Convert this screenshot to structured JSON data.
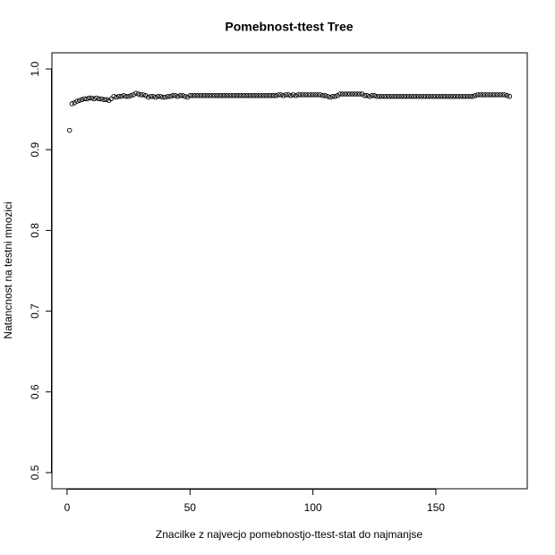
{
  "chart_data": {
    "type": "scatter",
    "title": "Pomebnost-ttest Tree",
    "x_label": "Znacilke z najvecjo pomebnostjo-ttest-stat do najmanjse",
    "y_label": "Natancnost na testni mnozici",
    "x": [
      1,
      2,
      3,
      4,
      5,
      6,
      7,
      8,
      9,
      10,
      11,
      12,
      13,
      14,
      15,
      16,
      17,
      18,
      19,
      20,
      21,
      22,
      23,
      24,
      25,
      26,
      27,
      28,
      29,
      30,
      31,
      32,
      33,
      34,
      35,
      36,
      37,
      38,
      39,
      40,
      41,
      42,
      43,
      44,
      45,
      46,
      47,
      48,
      49,
      50,
      51,
      52,
      53,
      54,
      55,
      56,
      57,
      58,
      59,
      60,
      61,
      62,
      63,
      64,
      65,
      66,
      67,
      68,
      69,
      70,
      71,
      72,
      73,
      74,
      75,
      76,
      77,
      78,
      79,
      80,
      81,
      82,
      83,
      84,
      85,
      86,
      87,
      88,
      89,
      90,
      91,
      92,
      93,
      94,
      95,
      96,
      97,
      98,
      99,
      100,
      101,
      102,
      103,
      104,
      105,
      106,
      107,
      108,
      109,
      110,
      111,
      112,
      113,
      114,
      115,
      116,
      117,
      118,
      119,
      120,
      121,
      122,
      123,
      124,
      125,
      126,
      127,
      128,
      129,
      130,
      131,
      132,
      133,
      134,
      135,
      136,
      137,
      138,
      139,
      140,
      141,
      142,
      143,
      144,
      145,
      146,
      147,
      148,
      149,
      150,
      151,
      152,
      153,
      154,
      155,
      156,
      157,
      158,
      159,
      160,
      161,
      162,
      163,
      164,
      165,
      166,
      167,
      168,
      169,
      170,
      171,
      172,
      173,
      174,
      175,
      176,
      177,
      178,
      179,
      180
    ],
    "values": [
      0.924,
      0.957,
      0.958,
      0.96,
      0.961,
      0.962,
      0.963,
      0.963,
      0.964,
      0.964,
      0.963,
      0.964,
      0.963,
      0.963,
      0.962,
      0.962,
      0.961,
      0.963,
      0.966,
      0.965,
      0.966,
      0.966,
      0.967,
      0.966,
      0.966,
      0.967,
      0.968,
      0.97,
      0.969,
      0.968,
      0.968,
      0.967,
      0.965,
      0.966,
      0.966,
      0.965,
      0.966,
      0.966,
      0.965,
      0.965,
      0.966,
      0.966,
      0.967,
      0.967,
      0.966,
      0.967,
      0.967,
      0.966,
      0.965,
      0.967,
      0.967,
      0.967,
      0.967,
      0.967,
      0.967,
      0.967,
      0.967,
      0.967,
      0.967,
      0.967,
      0.967,
      0.967,
      0.967,
      0.967,
      0.967,
      0.967,
      0.967,
      0.967,
      0.967,
      0.967,
      0.967,
      0.967,
      0.967,
      0.967,
      0.967,
      0.967,
      0.967,
      0.967,
      0.967,
      0.967,
      0.967,
      0.967,
      0.967,
      0.967,
      0.967,
      0.968,
      0.968,
      0.967,
      0.968,
      0.968,
      0.967,
      0.968,
      0.967,
      0.968,
      0.968,
      0.968,
      0.968,
      0.968,
      0.968,
      0.968,
      0.968,
      0.968,
      0.968,
      0.967,
      0.967,
      0.966,
      0.965,
      0.966,
      0.966,
      0.967,
      0.969,
      0.969,
      0.969,
      0.969,
      0.969,
      0.969,
      0.969,
      0.969,
      0.969,
      0.969,
      0.967,
      0.967,
      0.966,
      0.967,
      0.967,
      0.966,
      0.966,
      0.966,
      0.966,
      0.966,
      0.966,
      0.966,
      0.966,
      0.966,
      0.966,
      0.966,
      0.966,
      0.966,
      0.966,
      0.966,
      0.966,
      0.966,
      0.966,
      0.966,
      0.966,
      0.966,
      0.966,
      0.966,
      0.966,
      0.966,
      0.966,
      0.966,
      0.966,
      0.966,
      0.966,
      0.966,
      0.966,
      0.966,
      0.966,
      0.966,
      0.966,
      0.966,
      0.966,
      0.966,
      0.966,
      0.967,
      0.968,
      0.968,
      0.968,
      0.968,
      0.968,
      0.968,
      0.968,
      0.968,
      0.968,
      0.968,
      0.968,
      0.968,
      0.967,
      0.966
    ],
    "color": "#000000",
    "xlim": [
      -6.16,
      187.16
    ],
    "xticks": [
      0,
      50,
      100,
      150
    ],
    "ylim": [
      0.48,
      1.02
    ],
    "yticks": [
      0.5,
      0.6,
      0.7,
      0.8,
      0.9,
      {
        "value": 1,
        "label": "1.0"
      }
    ]
  }
}
